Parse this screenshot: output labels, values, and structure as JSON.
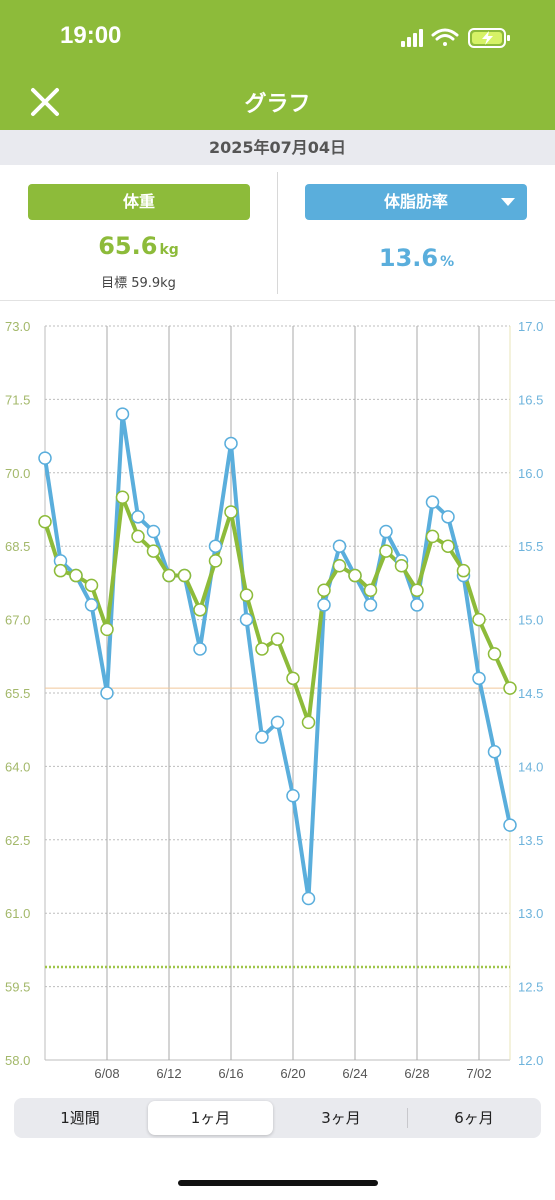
{
  "status": {
    "time": "19:00"
  },
  "nav": {
    "title": "グラフ"
  },
  "date": "2025年07月04日",
  "weight": {
    "label": "体重",
    "value": "65.6",
    "unit": "kg",
    "target": "目標 59.9kg"
  },
  "fat": {
    "label": "体脂肪率",
    "value": "13.6",
    "unit": "%"
  },
  "tabs": [
    {
      "label": "1週間",
      "active": false
    },
    {
      "label": "1ヶ月",
      "active": true
    },
    {
      "label": "3ヶ月",
      "active": false
    },
    {
      "label": "6ヶ月",
      "active": false
    }
  ],
  "colors": {
    "accent": "#8dbb3a",
    "fat": "#5aaedc",
    "background": "#ffffff"
  },
  "chart_data": {
    "type": "line",
    "x": [
      "6/04",
      "6/05",
      "6/06",
      "6/07",
      "6/08",
      "6/09",
      "6/10",
      "6/11",
      "6/12",
      "6/13",
      "6/14",
      "6/15",
      "6/16",
      "6/17",
      "6/18",
      "6/19",
      "6/20",
      "6/21",
      "6/22",
      "6/23",
      "6/24",
      "6/25",
      "6/26",
      "6/27",
      "6/28",
      "6/29",
      "6/30",
      "7/01",
      "7/02",
      "7/03",
      "7/04"
    ],
    "x_tick_labels": [
      "6/08",
      "6/12",
      "6/16",
      "6/20",
      "6/24",
      "6/28",
      "7/02"
    ],
    "y_left_ticks": [
      "73.0",
      "71.5",
      "70.0",
      "68.5",
      "67.0",
      "65.5",
      "64.0",
      "62.5",
      "61.0",
      "59.5",
      "58.0"
    ],
    "y_right_ticks": [
      "17.0",
      "16.5",
      "16.0",
      "15.5",
      "15.0",
      "14.5",
      "14.0",
      "13.5",
      "13.0",
      "12.5",
      "12.0"
    ],
    "ylim_left": [
      58.0,
      73.0
    ],
    "ylim_right": [
      12.0,
      17.0
    ],
    "target_weight": 59.9,
    "reference_line": 65.6,
    "series": [
      {
        "axis": "left",
        "values": [
          69.0,
          68.0,
          67.9,
          67.7,
          66.8,
          69.5,
          68.7,
          68.4,
          67.9,
          67.9,
          67.2,
          68.2,
          69.2,
          67.5,
          66.4,
          66.6,
          65.8,
          64.9,
          67.6,
          68.1,
          67.9,
          67.6,
          68.4,
          68.1,
          67.6,
          68.7,
          68.5,
          68.0,
          67.0,
          66.3,
          65.6
        ]
      },
      {
        "axis": "right",
        "values": [
          16.1,
          15.4,
          15.3,
          15.1,
          14.5,
          16.4,
          15.7,
          15.6,
          15.3,
          15.3,
          14.8,
          15.5,
          16.2,
          15.0,
          14.2,
          14.3,
          13.8,
          13.1,
          15.1,
          15.5,
          15.3,
          15.1,
          15.6,
          15.4,
          15.1,
          15.8,
          15.7,
          15.3,
          14.6,
          14.1,
          13.6
        ]
      }
    ]
  }
}
